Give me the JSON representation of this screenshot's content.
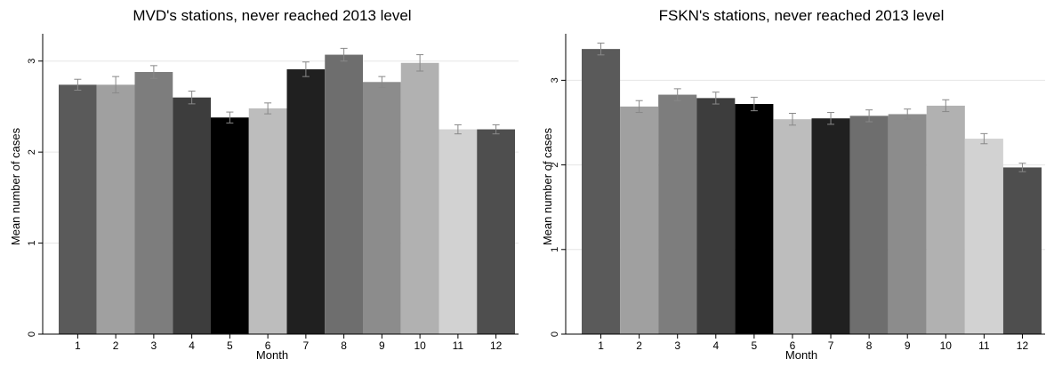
{
  "chart_data": [
    {
      "type": "bar",
      "title": "MVD's stations, never reached 2013 level",
      "xlabel": "Month",
      "ylabel": "Mean number of cases",
      "categories": [
        "1",
        "2",
        "3",
        "4",
        "5",
        "6",
        "7",
        "8",
        "9",
        "10",
        "11",
        "12"
      ],
      "values": [
        2.74,
        2.74,
        2.88,
        2.6,
        2.38,
        2.48,
        2.91,
        3.07,
        2.77,
        2.98,
        2.25,
        2.25
      ],
      "error": [
        0.06,
        0.09,
        0.07,
        0.07,
        0.06,
        0.06,
        0.08,
        0.07,
        0.06,
        0.09,
        0.05,
        0.05
      ],
      "yticks": [
        0,
        1,
        2,
        3
      ],
      "ylim": [
        0,
        3.3
      ],
      "grid": true,
      "bar_colors": [
        "#5a5a5a",
        "#a0a0a0",
        "#7d7d7d",
        "#3d3d3d",
        "#000000",
        "#bdbdbd",
        "#202020",
        "#6e6e6e",
        "#8c8c8c",
        "#b1b1b1",
        "#d2d2d2",
        "#4e4e4e"
      ]
    },
    {
      "type": "bar",
      "title": "FSKN's stations, never reached 2013 level",
      "xlabel": "Month",
      "ylabel": "Mean number of cases",
      "categories": [
        "1",
        "2",
        "3",
        "4",
        "5",
        "6",
        "7",
        "8",
        "9",
        "10",
        "11",
        "12"
      ],
      "values": [
        3.37,
        2.69,
        2.83,
        2.79,
        2.72,
        2.54,
        2.55,
        2.58,
        2.6,
        2.7,
        2.31,
        1.97
      ],
      "error": [
        0.07,
        0.07,
        0.07,
        0.07,
        0.08,
        0.07,
        0.07,
        0.07,
        0.06,
        0.07,
        0.06,
        0.05
      ],
      "yticks": [
        0,
        1,
        2,
        3
      ],
      "ylim": [
        0,
        3.55
      ],
      "grid": true,
      "bar_colors": [
        "#5a5a5a",
        "#a0a0a0",
        "#7d7d7d",
        "#3d3d3d",
        "#000000",
        "#bdbdbd",
        "#202020",
        "#6e6e6e",
        "#8c8c8c",
        "#b1b1b1",
        "#d2d2d2",
        "#4e4e4e"
      ]
    }
  ]
}
